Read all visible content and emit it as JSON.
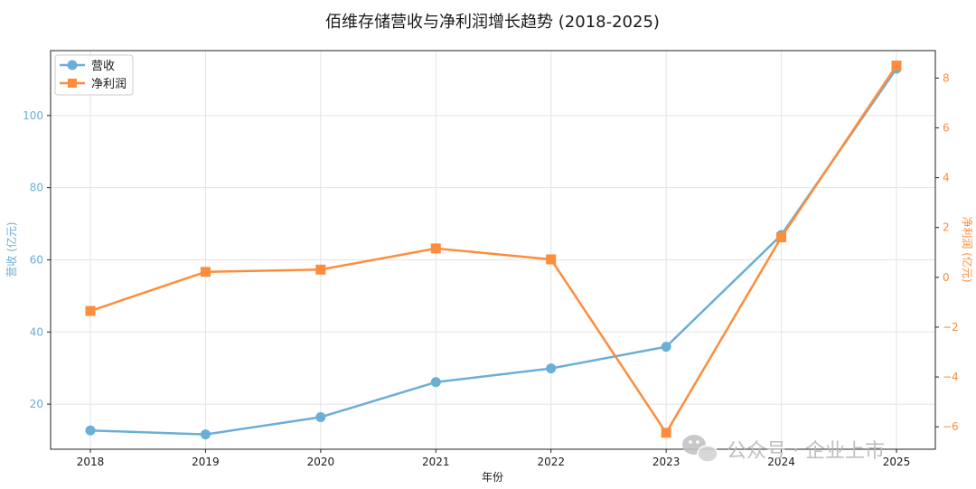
{
  "chart_data": {
    "type": "line",
    "title": "佰维存储营收与净利润增长趋势 (2018-2025)",
    "xlabel": "年份",
    "x": [
      "2018",
      "2019",
      "2020",
      "2021",
      "2022",
      "2023",
      "2024",
      "2025"
    ],
    "series": [
      {
        "name": "营收",
        "axis": "left",
        "marker": "circle",
        "color": "#6baed6",
        "values": [
          12.7,
          11.6,
          16.4,
          26.1,
          29.9,
          35.9,
          66.9,
          113.0
        ]
      },
      {
        "name": "净利润",
        "axis": "right",
        "marker": "square",
        "color": "#fd8d3c",
        "values": [
          -1.35,
          0.22,
          0.31,
          1.16,
          0.72,
          -6.24,
          1.61,
          8.5
        ]
      }
    ],
    "y_left": {
      "label": "营收 (亿元)",
      "ylim": [
        7.5,
        118
      ],
      "ticks": [
        "20",
        "40",
        "60",
        "80",
        "100"
      ],
      "tick_values": [
        20,
        40,
        60,
        80,
        100
      ],
      "color": "#6baed6"
    },
    "y_right": {
      "label": "净利润 (亿元)",
      "ylim": [
        -6.9,
        9.1
      ],
      "ticks": [
        "−6",
        "−4",
        "−2",
        "0",
        "2",
        "4",
        "6",
        "8"
      ],
      "tick_values": [
        -6,
        -4,
        -2,
        0,
        2,
        4,
        6,
        8
      ],
      "color": "#fd8d3c"
    },
    "grid": true,
    "legend_position": "top-left"
  },
  "watermark": {
    "icon": "wechat-icon",
    "text": "公众号 · 企业上市"
  }
}
